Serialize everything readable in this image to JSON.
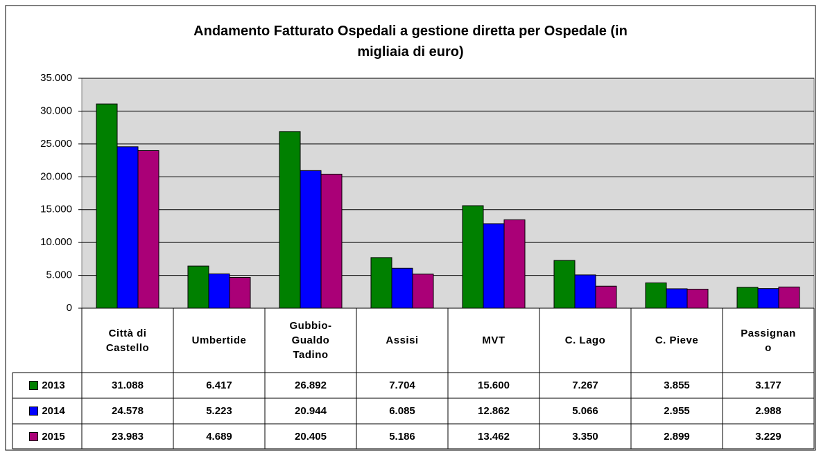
{
  "chart_data": {
    "type": "bar",
    "title": "Andamento Fatturato Ospedali a gestione diretta per Ospedale (in migliaia di euro)",
    "categories": [
      "Città di Castello",
      "Umbertide",
      "Gubbio-Gualdo Tadino",
      "Assisi",
      "MVT",
      "C. Lago",
      "C. Pieve",
      "Passignano"
    ],
    "series": [
      {
        "name": "2013",
        "color": "#008000",
        "values": [
          31088,
          6417,
          26892,
          7704,
          15600,
          7267,
          3855,
          3177
        ],
        "value_labels": [
          "31.088",
          "6.417",
          "26.892",
          "7.704",
          "15.600",
          "7.267",
          "3.855",
          "3.177"
        ]
      },
      {
        "name": "2014",
        "color": "#0000ff",
        "values": [
          24578,
          5223,
          20944,
          6085,
          12862,
          5066,
          2955,
          2988
        ],
        "value_labels": [
          "24.578",
          "5.223",
          "20.944",
          "6.085",
          "12.862",
          "5.066",
          "2.955",
          "2.988"
        ]
      },
      {
        "name": "2015",
        "color": "#aa0077",
        "values": [
          23983,
          4689,
          20405,
          5186,
          13462,
          3350,
          2899,
          3229
        ],
        "value_labels": [
          "23.983",
          "4.689",
          "20.405",
          "5.186",
          "13.462",
          "3.350",
          "2.899",
          "3.229"
        ]
      }
    ],
    "ylim": [
      0,
      35000
    ],
    "yticks": [
      0,
      {
        "value": 5000,
        "label": "5.000"
      },
      {
        "value": 10000,
        "label": "10.000"
      },
      {
        "value": 15000,
        "label": "15.000"
      },
      {
        "value": 20000,
        "label": "20.000"
      },
      {
        "value": 25000,
        "label": "25.000"
      },
      {
        "value": 30000,
        "label": "30.000"
      },
      {
        "value": 35000,
        "label": "35.000"
      }
    ],
    "grid": true
  }
}
